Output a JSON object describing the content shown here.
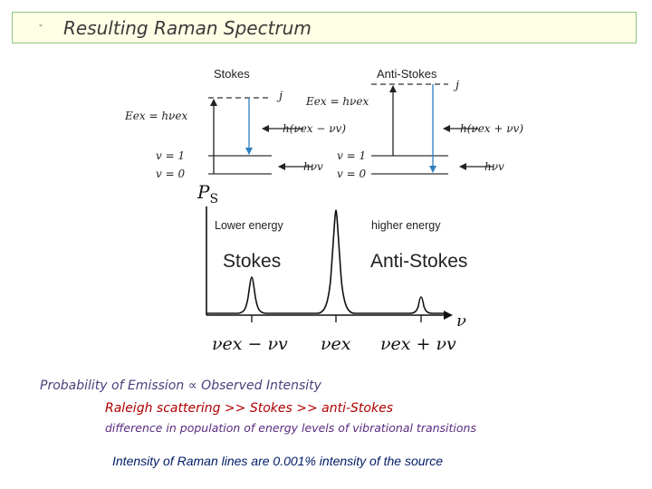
{
  "title": {
    "bullet": "-",
    "text": "Resulting Raman Spectrum"
  },
  "energy_diagram": {
    "stokes_label": "Stokes",
    "anti_stokes_label": "Anti-Stokes",
    "virtual_level": "j",
    "e_ex_left": "Eex = hνex",
    "e_ex_right": "Eex = hνex",
    "h_minus": "h(νex − νv)",
    "h_plus": "h(νex + νv)",
    "v1": "v = 1",
    "v0": "v = 0",
    "h_nu_v": "hνv"
  },
  "spectrum": {
    "y_axis_label": "P",
    "y_axis_sub": "S",
    "x_axis_label": "ν",
    "lower_energy": "Lower energy",
    "higher_energy": "higher energy",
    "stokes": "Stokes",
    "anti_stokes": "Anti-Stokes",
    "tick_stokes": "νex − νv",
    "tick_center": "νex",
    "tick_anti": "νex + νv"
  },
  "notes": {
    "line1_left": "Probability of Emission",
    "arrow_symbol": "∝",
    "line1_right": "Observed Intensity",
    "line2": "Raleigh scattering >> Stokes >> anti-Stokes",
    "line3": "difference in population of energy levels of vibrational transitions",
    "line4": "Intensity of Raman lines are 0.001% intensity of the source"
  }
}
